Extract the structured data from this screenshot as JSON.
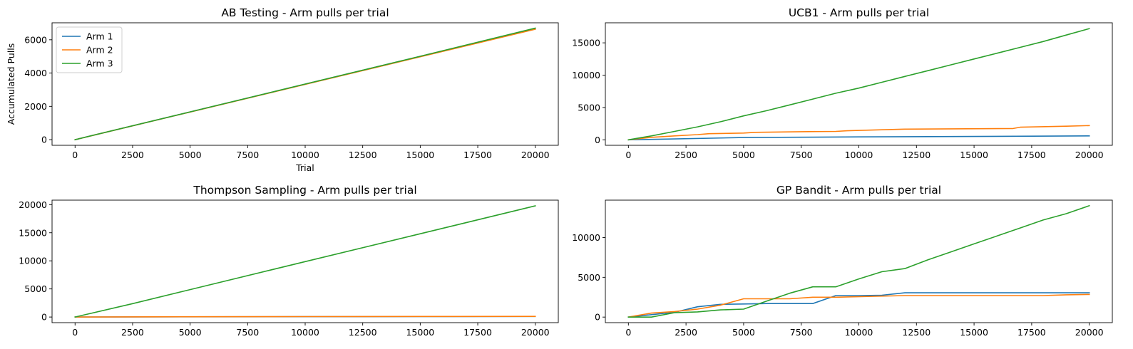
{
  "colors": {
    "Arm 1": "#1f77b4",
    "Arm 2": "#ff7f0e",
    "Arm 3": "#2ca02c"
  },
  "chart_data": [
    {
      "type": "line",
      "title": "AB Testing - Arm pulls per trial",
      "xlabel": "Trial",
      "ylabel": "Accumulated Pulls",
      "xlim": [
        -1000,
        21000
      ],
      "ylim": [
        -340,
        7020
      ],
      "xticks": [
        0,
        2500,
        5000,
        7500,
        10000,
        12500,
        15000,
        17500,
        20000
      ],
      "yticks": [
        0,
        2000,
        4000,
        6000
      ],
      "legend": "upper-left",
      "series": [
        {
          "name": "Arm 1",
          "x": [
            0,
            5000,
            10000,
            15000,
            20000
          ],
          "y": [
            0,
            1666,
            3333,
            5000,
            6667
          ]
        },
        {
          "name": "Arm 2",
          "x": [
            0,
            5000,
            10000,
            15000,
            20000
          ],
          "y": [
            0,
            1660,
            3320,
            4980,
            6633
          ]
        },
        {
          "name": "Arm 3",
          "x": [
            0,
            5000,
            10000,
            15000,
            20000
          ],
          "y": [
            0,
            1668,
            3340,
            5010,
            6700
          ]
        }
      ]
    },
    {
      "type": "line",
      "title": "UCB1 - Arm pulls per trial",
      "xlabel": "",
      "ylabel": "",
      "xlim": [
        -1000,
        21000
      ],
      "ylim": [
        -850,
        18100
      ],
      "xticks": [
        0,
        2500,
        5000,
        7500,
        10000,
        12500,
        15000,
        17500,
        20000
      ],
      "yticks": [
        0,
        5000,
        10000,
        15000
      ],
      "series": [
        {
          "name": "Arm 1",
          "x": [
            0,
            5000,
            10000,
            15000,
            20000
          ],
          "y": [
            0,
            350,
            450,
            520,
            600
          ]
        },
        {
          "name": "Arm 2",
          "x": [
            0,
            1000,
            2000,
            3000,
            3500,
            5000,
            5500,
            7500,
            9000,
            9500,
            11000,
            12000,
            16700,
            17000,
            19000,
            20000
          ],
          "y": [
            0,
            380,
            600,
            800,
            950,
            1050,
            1150,
            1250,
            1300,
            1400,
            1550,
            1650,
            1750,
            1950,
            2100,
            2200
          ]
        },
        {
          "name": "Arm 3",
          "x": [
            0,
            1000,
            2000,
            3000,
            4000,
            5000,
            6000,
            7000,
            8000,
            9000,
            10000,
            11000,
            12000,
            13000,
            14000,
            15000,
            16000,
            17000,
            18000,
            19000,
            20000
          ],
          "y": [
            0,
            600,
            1300,
            2000,
            2800,
            3700,
            4500,
            5400,
            6300,
            7200,
            8000,
            8900,
            9800,
            10700,
            11600,
            12500,
            13400,
            14300,
            15200,
            16200,
            17200
          ]
        }
      ]
    },
    {
      "type": "line",
      "title": "Thompson Sampling - Arm pulls per trial",
      "xlabel": "",
      "ylabel": "",
      "xlim": [
        -1000,
        21000
      ],
      "ylim": [
        -1000,
        20800
      ],
      "xticks": [
        0,
        2500,
        5000,
        7500,
        10000,
        12500,
        15000,
        17500,
        20000
      ],
      "yticks": [
        0,
        5000,
        10000,
        15000,
        20000
      ],
      "series": [
        {
          "name": "Arm 1",
          "x": [
            0,
            5000,
            10000,
            15000,
            20000
          ],
          "y": [
            0,
            40,
            60,
            80,
            100
          ]
        },
        {
          "name": "Arm 2",
          "x": [
            0,
            5000,
            10000,
            15000,
            20000
          ],
          "y": [
            0,
            50,
            80,
            100,
            120
          ]
        },
        {
          "name": "Arm 3",
          "x": [
            0,
            2500,
            5000,
            10000,
            15000,
            20000
          ],
          "y": [
            0,
            2380,
            4880,
            9860,
            14820,
            19780
          ]
        }
      ]
    },
    {
      "type": "line",
      "title": "GP Bandit - Arm pulls per trial",
      "xlabel": "",
      "ylabel": "",
      "xlim": [
        -1000,
        21000
      ],
      "ylim": [
        -700,
        14700
      ],
      "xticks": [
        0,
        2500,
        5000,
        7500,
        10000,
        12500,
        15000,
        17500,
        20000
      ],
      "yticks": [
        0,
        5000,
        10000
      ],
      "series": [
        {
          "name": "Arm 1",
          "x": [
            0,
            1000,
            2000,
            3000,
            4000,
            5000,
            6000,
            7000,
            8000,
            9000,
            10000,
            11000,
            12000,
            15000,
            20000
          ],
          "y": [
            0,
            300,
            600,
            1300,
            1600,
            1650,
            1700,
            1700,
            1700,
            2700,
            2700,
            2750,
            3050,
            3050,
            3050
          ]
        },
        {
          "name": "Arm 2",
          "x": [
            0,
            1000,
            2000,
            3000,
            4000,
            5000,
            6000,
            7000,
            8000,
            9000,
            12000,
            18000,
            19000,
            20000
          ],
          "y": [
            0,
            500,
            700,
            1000,
            1500,
            2300,
            2300,
            2300,
            2500,
            2500,
            2700,
            2700,
            2800,
            2850
          ]
        },
        {
          "name": "Arm 3",
          "x": [
            0,
            1000,
            2000,
            3000,
            4000,
            5000,
            6000,
            7000,
            8000,
            9000,
            10000,
            11000,
            12000,
            13000,
            14000,
            15000,
            16000,
            17000,
            18000,
            19000,
            20000
          ],
          "y": [
            0,
            0,
            550,
            650,
            900,
            1000,
            2000,
            3000,
            3800,
            3800,
            4800,
            5700,
            6100,
            7200,
            8200,
            9200,
            10200,
            11200,
            12200,
            13000,
            14000
          ]
        }
      ]
    }
  ]
}
